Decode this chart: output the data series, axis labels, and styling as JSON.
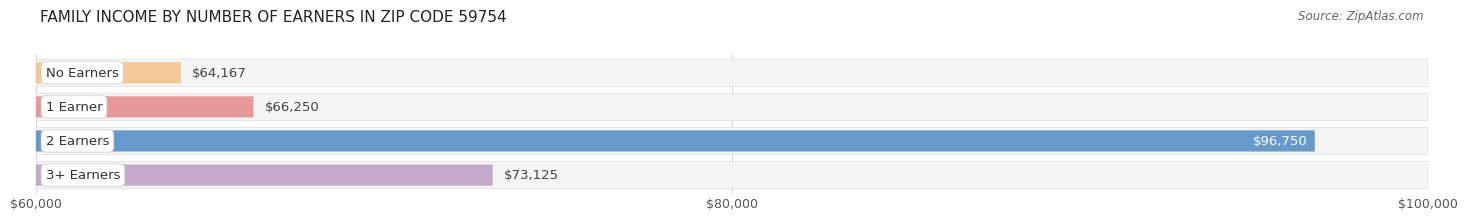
{
  "title": "FAMILY INCOME BY NUMBER OF EARNERS IN ZIP CODE 59754",
  "source": "Source: ZipAtlas.com",
  "categories": [
    "No Earners",
    "1 Earner",
    "2 Earners",
    "3+ Earners"
  ],
  "values": [
    64167,
    66250,
    96750,
    73125
  ],
  "bar_colors": [
    "#f5c899",
    "#e89898",
    "#6699cc",
    "#c4a8cc"
  ],
  "bar_label_colors": [
    "#444444",
    "#444444",
    "#ffffff",
    "#444444"
  ],
  "value_labels": [
    "$64,167",
    "$66,250",
    "$96,750",
    "$73,125"
  ],
  "xmin": 60000,
  "xmax": 100000,
  "xticks": [
    60000,
    80000,
    100000
  ],
  "xtick_labels": [
    "$60,000",
    "$80,000",
    "$100,000"
  ],
  "background_color": "#ffffff",
  "bar_bg_color": "#e8e8e8",
  "row_bg_color": "#f5f5f5",
  "title_fontsize": 11,
  "source_fontsize": 8.5,
  "bar_height": 0.62,
  "label_fontsize": 9.5,
  "category_fontsize": 9.5,
  "tick_fontsize": 9
}
